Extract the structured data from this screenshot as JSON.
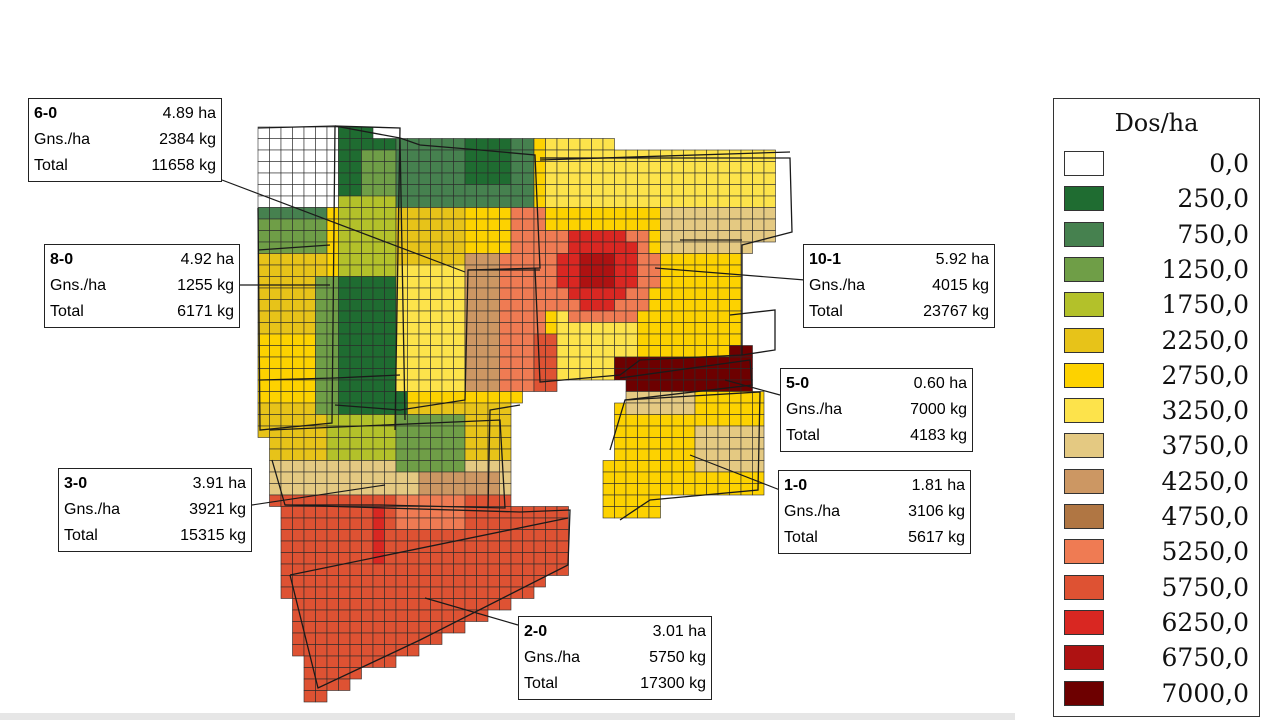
{
  "colors": {
    "0": "#ffffff",
    "1": "#1f6c31",
    "2": "#46814f",
    "3": "#6f9e47",
    "4": "#b3c12a",
    "5": "#e7c319",
    "6": "#fdd200",
    "7": "#fde34b",
    "8": "#e4c982",
    "9": "#cc9763",
    "10": "#b07643",
    "11": "#ef7b53",
    "12": "#de5233",
    "13": "#d92722",
    "14": "#ae1212",
    "15": "#6d0000"
  },
  "zones": [
    {
      "id": "6-0",
      "area": "4.89 ha",
      "rate_label": "Gns./ha",
      "rate": "2384 kg",
      "total_label": "Total",
      "total": "11658 kg"
    },
    {
      "id": "8-0",
      "area": "4.92 ha",
      "rate_label": "Gns./ha",
      "rate": "1255 kg",
      "total_label": "Total",
      "total": "6171 kg"
    },
    {
      "id": "10-1",
      "area": "5.92 ha",
      "rate_label": "Gns./ha",
      "rate": "4015 kg",
      "total_label": "Total",
      "total": "23767 kg"
    },
    {
      "id": "5-0",
      "area": "0.60 ha",
      "rate_label": "Gns./ha",
      "rate": "7000 kg",
      "total_label": "Total",
      "total": "4183 kg"
    },
    {
      "id": "3-0",
      "area": "3.91 ha",
      "rate_label": "Gns./ha",
      "rate": "3921 kg",
      "total_label": "Total",
      "total": "15315 kg"
    },
    {
      "id": "1-0",
      "area": "1.81 ha",
      "rate_label": "Gns./ha",
      "rate": "3106 kg",
      "total_label": "Total",
      "total": "5617 kg"
    },
    {
      "id": "2-0",
      "area": "3.01 ha",
      "rate_label": "Gns./ha",
      "rate": "5750 kg",
      "total_label": "Total",
      "total": "17300 kg"
    }
  ],
  "legend": {
    "title": "Dos/ha",
    "items": [
      {
        "label": "0,0",
        "color": "#ffffff"
      },
      {
        "label": "250,0",
        "color": "#1f6c31"
      },
      {
        "label": "750,0",
        "color": "#46814f"
      },
      {
        "label": "1250,0",
        "color": "#6f9e47"
      },
      {
        "label": "1750,0",
        "color": "#b3c12a"
      },
      {
        "label": "2250,0",
        "color": "#e7c319"
      },
      {
        "label": "2750,0",
        "color": "#fdd200"
      },
      {
        "label": "3250,0",
        "color": "#fde34b"
      },
      {
        "label": "3750,0",
        "color": "#e4c982"
      },
      {
        "label": "4250,0",
        "color": "#cc9763"
      },
      {
        "label": "4750,0",
        "color": "#b07643"
      },
      {
        "label": "5250,0",
        "color": "#ef7b53"
      },
      {
        "label": "5750,0",
        "color": "#de5233"
      },
      {
        "label": "6250,0",
        "color": "#d92722"
      },
      {
        "label": "6750,0",
        "color": "#ae1212"
      },
      {
        "label": "7000,0",
        "color": "#6d0000"
      }
    ]
  }
}
